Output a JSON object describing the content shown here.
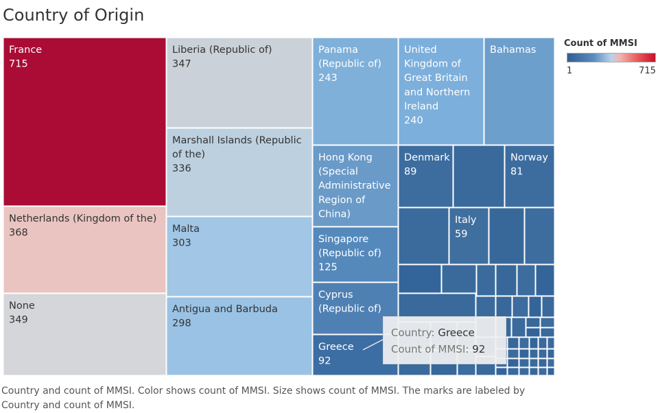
{
  "title": "Country of Origin",
  "legend": {
    "title": "Count of MMSI",
    "min_label": "1",
    "max_label": "715"
  },
  "caption": "Country and count of MMSI.  Color shows count of MMSI.  Size shows count of MMSI.  The marks are labeled by Country and count of MMSI.",
  "tooltip": {
    "country_label": "Country:",
    "country_value": "Greece",
    "count_label": "Count of MMSI:",
    "count_value": "92"
  },
  "colors": {
    "high": "#aa0c35",
    "mid_light": "#cbd3dc",
    "low_dark": "#2f5f94",
    "border": "#ffffff"
  },
  "chart_data": {
    "type": "treemap",
    "value_label": "Count of MMSI",
    "color_range": [
      1,
      715
    ],
    "labeled_items": [
      {
        "name": "France",
        "value": 715
      },
      {
        "name": "Netherlands (Kingdom of the)",
        "value": 368
      },
      {
        "name": "None",
        "value": 349
      },
      {
        "name": "Liberia (Republic of)",
        "value": 347
      },
      {
        "name": "Marshall Islands (Republic of the)",
        "value": 336
      },
      {
        "name": "Malta",
        "value": 303
      },
      {
        "name": "Antigua and Barbuda",
        "value": 298
      },
      {
        "name": "Panama (Republic of)",
        "value": 243
      },
      {
        "name": "United Kingdom of Great Britain and Northern Ireland",
        "value": 240
      },
      {
        "name": "Bahamas",
        "value": null
      },
      {
        "name": "Hong Kong (Special Administrative Region of China)",
        "value": null
      },
      {
        "name": "Singapore (Republic of)",
        "value": 125
      },
      {
        "name": "Cyprus (Republic of)",
        "value": null
      },
      {
        "name": "Greece",
        "value": 92
      },
      {
        "name": "Denmark",
        "value": 89
      },
      {
        "name": "Norway",
        "value": 81
      },
      {
        "name": "Italy",
        "value": 59
      }
    ]
  }
}
